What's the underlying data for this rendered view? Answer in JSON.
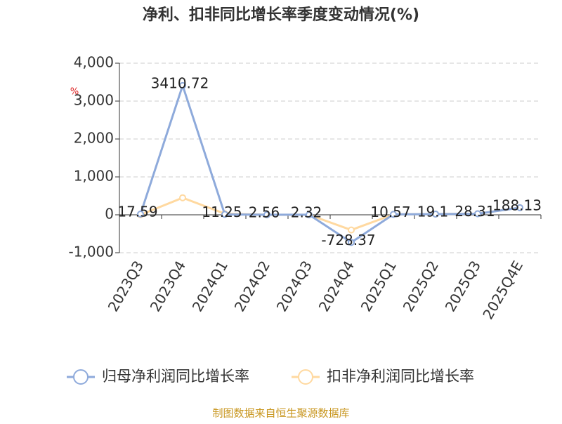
{
  "chart_data": {
    "type": "line",
    "title": "净利、扣非同比增长率季度变动情况(%)",
    "y_unit": "%",
    "categories": [
      "2023Q3",
      "2023Q4",
      "2024Q1",
      "2024Q2",
      "2024Q3",
      "2024Q4",
      "2025Q1",
      "2025Q2",
      "2025Q3",
      "2025Q4E"
    ],
    "series": [
      {
        "name": "归母净利润同比增长率",
        "color": "#8eaadb",
        "values": [
          17.59,
          3410.72,
          11.25,
          2.56,
          2.32,
          -728.37,
          10.57,
          19.1,
          28.31,
          188.13
        ]
      },
      {
        "name": "扣非净利润同比增长率",
        "color": "#ffd9a0",
        "values": [
          0,
          450,
          30,
          0,
          0,
          -400,
          10,
          20,
          30,
          190
        ]
      }
    ],
    "ylim": [
      -1000,
      4000
    ],
    "yticks": [
      {
        "value": -1000,
        "label": "-1,000"
      },
      0,
      {
        "value": 1000,
        "label": "1,000"
      },
      {
        "value": 2000,
        "label": "2,000"
      },
      {
        "value": 3000,
        "label": "3,000"
      },
      {
        "value": 4000,
        "label": "4,000"
      }
    ],
    "grid": true,
    "source": "制图数据来自恒生聚源数据库"
  }
}
